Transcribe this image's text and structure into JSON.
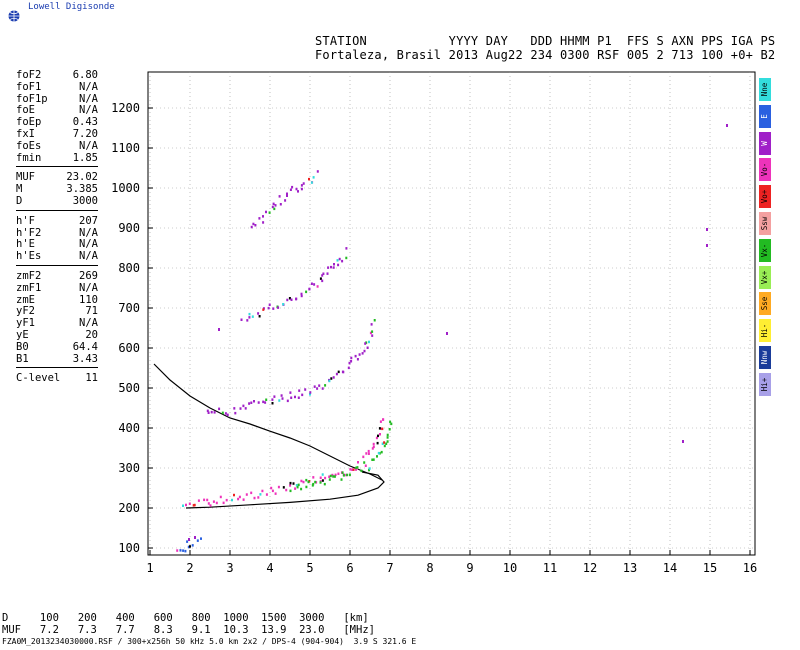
{
  "brand": "Lowell Digisonde",
  "header": {
    "line1": "STATION           YYYY DAY   DDD HHMM P1  FFS S AXN PPS IGA PS",
    "line2": "Fortaleza, Brasil 2013 Aug22 234 0300 RSF 005 2 713 100 +0+ B2"
  },
  "params": [
    {
      "label": "foF2",
      "value": "6.80"
    },
    {
      "label": "foF1",
      "value": "N/A"
    },
    {
      "label": "foF1p",
      "value": "N/A"
    },
    {
      "label": "foE",
      "value": "N/A"
    },
    {
      "label": "foEp",
      "value": "0.43"
    },
    {
      "label": "fxI",
      "value": "7.20"
    },
    {
      "label": "foEs",
      "value": "N/A"
    },
    {
      "label": "fmin",
      "value": "1.85"
    },
    {
      "sep": true
    },
    {
      "label": "MUF",
      "value": "23.02"
    },
    {
      "label": "M",
      "value": "3.385"
    },
    {
      "label": "D",
      "value": "3000"
    },
    {
      "sep": true
    },
    {
      "label": "h'F",
      "value": "207"
    },
    {
      "label": "h'F2",
      "value": "N/A"
    },
    {
      "label": "h'E",
      "value": "N/A"
    },
    {
      "label": "h'Es",
      "value": "N/A"
    },
    {
      "sep": true
    },
    {
      "label": "zmF2",
      "value": "269"
    },
    {
      "label": "zmF1",
      "value": "N/A"
    },
    {
      "label": "zmE",
      "value": "110"
    },
    {
      "label": "yF2",
      "value": "71"
    },
    {
      "label": "yF1",
      "value": "N/A"
    },
    {
      "label": "yE",
      "value": "20"
    },
    {
      "label": "B0",
      "value": "64.4"
    },
    {
      "label": "B1",
      "value": "3.43"
    },
    {
      "sep": true
    },
    {
      "label": "C-level",
      "value": "11"
    }
  ],
  "legend": [
    {
      "label": "Nne",
      "color": "#33dddd"
    },
    {
      "label": "E",
      "color": "#2a60e0"
    },
    {
      "label": "W",
      "color": "#a020c8"
    },
    {
      "label": "Vo-",
      "color": "#ee33bb"
    },
    {
      "label": "Vo+",
      "color": "#ee2222"
    },
    {
      "label": "Ssw",
      "color": "#f4a0a0"
    },
    {
      "label": "Vx-",
      "color": "#22bb22"
    },
    {
      "label": "Vx+",
      "color": "#99ee55"
    },
    {
      "label": "Sse",
      "color": "#ffaa22"
    },
    {
      "label": "Hi-",
      "color": "#ffee33"
    },
    {
      "label": "Nnw",
      "color": "#1a3c9a"
    },
    {
      "label": "Hi+",
      "color": "#a8a0e8"
    }
  ],
  "muf_table": {
    "row1": "D     100   200   400   600   800  1000  1500  3000   [km]",
    "row2": "MUF   7.2   7.3   7.7   8.3   9.1  10.3  13.9  23.0   [MHz]"
  },
  "footer": "FZA0M_2013234030000.RSF / 300+x256h 50 kHz 5.0 km 2x2 / DPS-4 (904-904)  3.9 S 321.6 E",
  "chart_data": {
    "type": "scatter",
    "title": "",
    "xlabel": "",
    "ylabel": "",
    "xlim": [
      1,
      16.5
    ],
    "ylim": [
      50,
      1270
    ],
    "x_ticks": [
      1,
      2,
      3,
      4,
      5,
      6,
      7,
      8,
      9,
      10,
      11,
      12,
      13,
      14,
      15,
      16
    ],
    "y_ticks": [
      100,
      200,
      300,
      400,
      500,
      600,
      700,
      800,
      900,
      1000,
      1100,
      1200
    ],
    "grid": "dotted",
    "traces": [
      {
        "name": "F2 O-trace",
        "color": "#ee33bb",
        "points": [
          [
            1.8,
            210
          ],
          [
            2.2,
            215
          ],
          [
            2.6,
            220
          ],
          [
            3.0,
            226
          ],
          [
            3.4,
            232
          ],
          [
            3.8,
            240
          ],
          [
            4.2,
            248
          ],
          [
            4.6,
            258
          ],
          [
            5.0,
            268
          ],
          [
            5.4,
            280
          ],
          [
            5.8,
            292
          ],
          [
            6.1,
            305
          ],
          [
            6.4,
            330
          ],
          [
            6.6,
            360
          ],
          [
            6.75,
            400
          ],
          [
            6.8,
            440
          ]
        ]
      },
      {
        "name": "F2 X-trace",
        "color": "#22bb22",
        "points": [
          [
            4.5,
            255
          ],
          [
            5.0,
            262
          ],
          [
            5.5,
            275
          ],
          [
            6.0,
            288
          ],
          [
            6.4,
            305
          ],
          [
            6.7,
            330
          ],
          [
            6.9,
            370
          ],
          [
            7.0,
            420
          ]
        ]
      },
      {
        "name": "2F trace",
        "color": "#a020c8",
        "points": [
          [
            2.4,
            440
          ],
          [
            2.8,
            442
          ],
          [
            3.2,
            450
          ],
          [
            3.6,
            460
          ],
          [
            4.0,
            468
          ],
          [
            4.4,
            480
          ],
          [
            4.8,
            492
          ],
          [
            5.2,
            505
          ],
          [
            5.6,
            525
          ],
          [
            5.85,
            545
          ],
          [
            6.0,
            565
          ],
          [
            6.3,
            600
          ],
          [
            6.5,
            640
          ],
          [
            6.6,
            670
          ]
        ]
      },
      {
        "name": "3F trace",
        "color": "#a020c8",
        "points": [
          [
            3.3,
            670
          ],
          [
            3.7,
            690
          ],
          [
            4.0,
            705
          ],
          [
            4.4,
            720
          ],
          [
            4.8,
            740
          ],
          [
            5.2,
            770
          ],
          [
            5.5,
            800
          ],
          [
            5.8,
            830
          ],
          [
            5.9,
            850
          ]
        ]
      },
      {
        "name": "4F trace",
        "color": "#a020c8",
        "points": [
          [
            3.5,
            910
          ],
          [
            3.8,
            925
          ],
          [
            4.2,
            970
          ],
          [
            4.6,
            1000
          ],
          [
            5.0,
            1020
          ],
          [
            5.2,
            1040
          ]
        ]
      },
      {
        "name": "E trace",
        "color": "#2a60e0",
        "points": [
          [
            1.7,
            100
          ],
          [
            1.85,
            105
          ],
          [
            2.0,
            112
          ],
          [
            2.3,
            125
          ]
        ]
      }
    ],
    "profile_lower": [
      [
        1.9,
        200
      ],
      [
        2.5,
        202
      ],
      [
        3.5,
        208
      ],
      [
        4.5,
        214
      ],
      [
        5.5,
        222
      ],
      [
        6.2,
        232
      ],
      [
        6.7,
        250
      ],
      [
        6.85,
        265
      ],
      [
        6.7,
        282
      ],
      [
        6.3,
        290
      ]
    ],
    "profile_upper": [
      [
        1.1,
        560
      ],
      [
        1.5,
        520
      ],
      [
        2.0,
        480
      ],
      [
        2.5,
        450
      ],
      [
        3.0,
        425
      ],
      [
        3.5,
        410
      ],
      [
        4.0,
        392
      ],
      [
        4.5,
        375
      ],
      [
        5.0,
        355
      ],
      [
        5.5,
        330
      ],
      [
        6.0,
        305
      ],
      [
        6.5,
        285
      ],
      [
        6.8,
        270
      ]
    ],
    "isolated": [
      [
        2.7,
        650
      ],
      [
        8.4,
        640
      ],
      [
        14.3,
        370
      ],
      [
        14.9,
        900
      ],
      [
        14.9,
        860
      ],
      [
        15.4,
        1160
      ],
      [
        1.95,
        125
      ],
      [
        2.1,
        130
      ]
    ]
  }
}
